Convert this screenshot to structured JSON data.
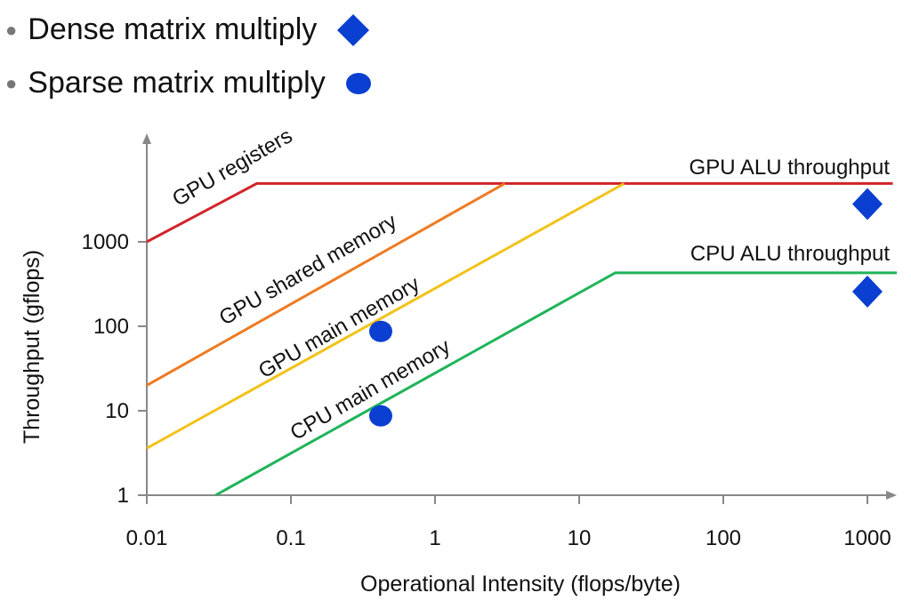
{
  "legend": [
    {
      "label": "Dense matrix multiply",
      "marker": "diamond",
      "color": "#0a3fd1"
    },
    {
      "label": "Sparse matrix multiply",
      "marker": "circle",
      "color": "#0a3fd1"
    }
  ],
  "chart_data": {
    "type": "line",
    "title": "",
    "xlabel": "Operational Intensity (flops/byte)",
    "ylabel": "Throughput (gflops)",
    "xscale": "log",
    "yscale": "log",
    "xlim": [
      0.01,
      1500
    ],
    "ylim": [
      1,
      10000
    ],
    "xticks": [
      0.01,
      0.1,
      1,
      10,
      100,
      1000
    ],
    "xtick_labels": [
      "0.01",
      "0.1",
      "1",
      "10",
      "100",
      "1000"
    ],
    "yticks": [
      1,
      10,
      100,
      1000
    ],
    "ytick_labels": [
      "1",
      "10",
      "100",
      "1000"
    ],
    "grid": false,
    "series": [
      {
        "name": "GPU registers",
        "color": "#d0242a",
        "points": [
          [
            0.01,
            1000
          ],
          [
            0.058,
            4900
          ],
          [
            1500,
            4900
          ]
        ]
      },
      {
        "name": "GPU shared memory",
        "color": "#ef7a22",
        "points": [
          [
            0.01,
            20
          ],
          [
            3.05,
            4900
          ]
        ]
      },
      {
        "name": "GPU main memory",
        "color": "#f2c21a",
        "points": [
          [
            0.01,
            3.6
          ],
          [
            20.5,
            4900
          ]
        ]
      },
      {
        "name": "CPU main memory",
        "color": "#1fb45a",
        "points": [
          [
            0.03,
            1
          ],
          [
            17.8,
            430
          ],
          [
            1600,
            430
          ]
        ]
      }
    ],
    "annotations": [
      {
        "text": "GPU ALU throughput"
      },
      {
        "text": "CPU ALU throughput"
      }
    ],
    "scatter": [
      {
        "name": "Dense matrix multiply",
        "marker": "diamond",
        "color": "#0a3fd1",
        "points": [
          [
            1000,
            2800
          ],
          [
            1000,
            257
          ]
        ]
      },
      {
        "name": "Sparse matrix multiply",
        "marker": "circle",
        "color": "#0a3fd1",
        "points": [
          [
            0.42,
            87
          ],
          [
            0.42,
            8.7
          ]
        ]
      }
    ]
  }
}
